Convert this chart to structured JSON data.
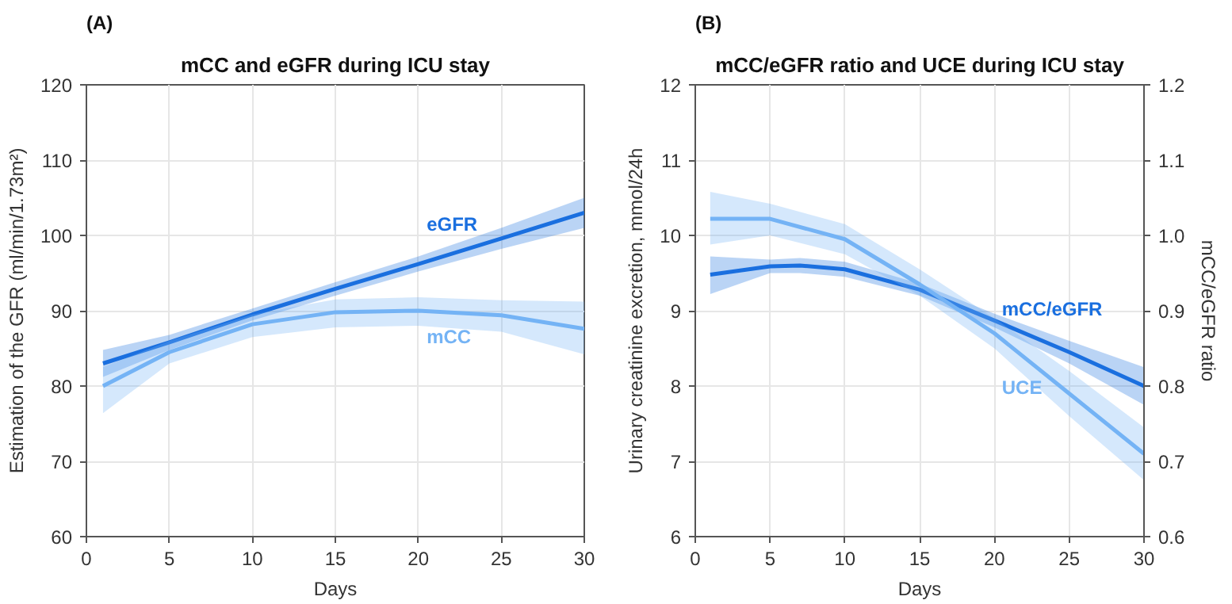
{
  "chart_data": [
    {
      "type": "line",
      "title": "mCC and eGFR during ICU stay",
      "xlabel": "Days",
      "ylabel": "Estimation of the GFR (ml/min/1.73m²)",
      "annotations": [
        "(A)"
      ],
      "xlim": [
        0,
        30
      ],
      "xticks": [
        0,
        5,
        10,
        15,
        20,
        25,
        30
      ],
      "ylim": [
        60,
        120
      ],
      "yticks": [
        60,
        70,
        80,
        90,
        100,
        110,
        120
      ],
      "grid": true,
      "marker": "none",
      "line_style": "solid",
      "series": [
        {
          "name": "eGFR",
          "color": "#1a6fdf",
          "x": [
            1,
            5,
            10,
            15,
            20,
            25,
            30
          ],
          "values": [
            83,
            85.8,
            89.5,
            92.9,
            96.2,
            99.6,
            103
          ],
          "lower": [
            81.2,
            84.8,
            88.7,
            92,
            95.2,
            98.2,
            101
          ],
          "upper": [
            84.8,
            86.8,
            90.3,
            93.8,
            97.2,
            101,
            105
          ]
        },
        {
          "name": "mCC",
          "color": "#74b3f5",
          "x": [
            1,
            5,
            10,
            15,
            20,
            25,
            30
          ],
          "values": [
            80,
            84.5,
            88.2,
            89.8,
            90,
            89.4,
            87.6
          ],
          "lower": [
            76.4,
            83,
            86.5,
            87.8,
            88,
            87.2,
            84.2
          ],
          "upper": [
            82.5,
            86,
            89.5,
            91.5,
            91.8,
            91.4,
            91.2
          ]
        }
      ]
    },
    {
      "type": "line",
      "title": "mCC/eGFR ratio and UCE during ICU stay",
      "xlabel": "Days",
      "ylabel": "Urinary creatinine excretion, mmol/24h",
      "y2label": "mCC/eGFR ratio",
      "annotations": [
        "(B)"
      ],
      "xlim": [
        0,
        30
      ],
      "xticks": [
        0,
        5,
        10,
        15,
        20,
        25,
        30
      ],
      "ylim": [
        6,
        12
      ],
      "yticks": [
        6,
        7,
        8,
        9,
        10,
        11,
        12
      ],
      "y2lim": [
        0.6,
        1.2
      ],
      "y2ticks": [
        {
          "value": 0.6,
          "label": "0.6"
        },
        {
          "value": 0.7,
          "label": "0.7"
        },
        {
          "value": 0.8,
          "label": "0.8"
        },
        {
          "value": 0.9,
          "label": "0.9"
        },
        {
          "value": 1.0,
          "label": "1.0"
        },
        {
          "value": 1.1,
          "label": "1.1"
        },
        {
          "value": 1.2,
          "label": "1.2"
        }
      ],
      "grid": true,
      "marker": "none",
      "line_style": "solid",
      "series": [
        {
          "name": "mCC/eGFR",
          "color": "#1a6fdf",
          "axis": "y2",
          "x": [
            1,
            5,
            7,
            10,
            15,
            20,
            25,
            30
          ],
          "values": [
            0.948,
            0.959,
            0.96,
            0.955,
            0.928,
            0.887,
            0.845,
            0.8
          ],
          "lower": [
            0.922,
            0.95,
            0.95,
            0.945,
            0.92,
            0.878,
            0.83,
            0.775
          ],
          "upper": [
            0.972,
            0.968,
            0.97,
            0.965,
            0.936,
            0.896,
            0.86,
            0.825
          ]
        },
        {
          "name": "UCE",
          "color": "#74b3f5",
          "x": [
            1,
            5,
            10,
            15,
            20,
            25,
            30
          ],
          "values": [
            10.22,
            10.22,
            9.95,
            9.35,
            8.7,
            7.9,
            7.1
          ],
          "lower": [
            9.88,
            10.0,
            9.75,
            9.2,
            8.5,
            7.6,
            6.75
          ],
          "upper": [
            10.58,
            10.42,
            10.15,
            9.55,
            8.9,
            8.2,
            7.45
          ]
        }
      ]
    }
  ]
}
